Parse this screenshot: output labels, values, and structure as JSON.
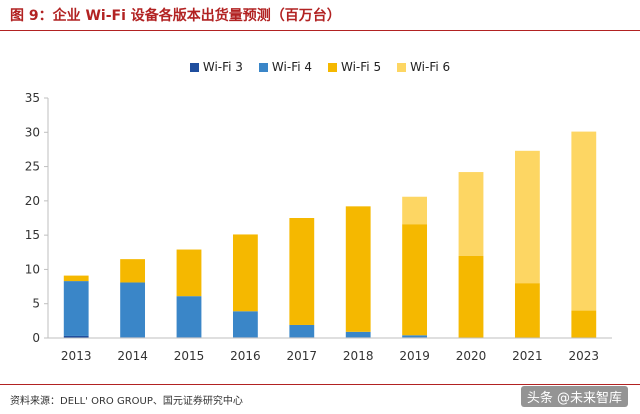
{
  "header": {
    "title": "图 9：企业 Wi-Fi 设备各版本出货量预测（百万台）"
  },
  "footer": {
    "source": "资料来源：DELL' ORO GROUP、国元证券研究中心",
    "watermark": "头条 @未来智库"
  },
  "colors": {
    "wifi3": "#1f4e9e",
    "wifi4": "#3a86c8",
    "wifi5": "#f5b800",
    "wifi6": "#fdd663",
    "title": "#b22222"
  },
  "legend": [
    {
      "label": "Wi-Fi 3",
      "color": "#1f4e9e"
    },
    {
      "label": "Wi-Fi 4",
      "color": "#3a86c8"
    },
    {
      "label": "Wi-Fi 5",
      "color": "#f5b800"
    },
    {
      "label": "Wi-Fi 6",
      "color": "#fdd663"
    }
  ],
  "chart_data": {
    "type": "bar",
    "stacked": true,
    "title": "图 9：企业 Wi-Fi 设备各版本出货量预测（百万台）",
    "xlabel": "",
    "ylabel": "",
    "categories": [
      "2013",
      "2014",
      "2015",
      "2016",
      "2017",
      "2018",
      "2019",
      "2020",
      "2021",
      "2023"
    ],
    "series": [
      {
        "name": "Wi-Fi 3",
        "color": "#1f4e9e",
        "values": [
          0.3,
          0.1,
          0.1,
          0.1,
          0.1,
          0.1,
          0.1,
          0,
          0,
          0
        ]
      },
      {
        "name": "Wi-Fi 4",
        "color": "#3a86c8",
        "values": [
          8.0,
          8.0,
          6.0,
          3.8,
          1.8,
          0.8,
          0.3,
          0,
          0,
          0
        ]
      },
      {
        "name": "Wi-Fi 5",
        "color": "#f5b800",
        "values": [
          0.8,
          3.4,
          6.8,
          11.2,
          15.6,
          18.3,
          16.2,
          12.0,
          8.0,
          4.0
        ]
      },
      {
        "name": "Wi-Fi 6",
        "color": "#fdd663",
        "values": [
          0,
          0,
          0,
          0,
          0,
          0,
          4.0,
          12.2,
          19.3,
          26.1
        ]
      }
    ],
    "ylim": [
      0,
      35
    ],
    "yticks": [
      0,
      5,
      10,
      15,
      20,
      25,
      30,
      35
    ],
    "grid": false,
    "legend_position": "top"
  }
}
